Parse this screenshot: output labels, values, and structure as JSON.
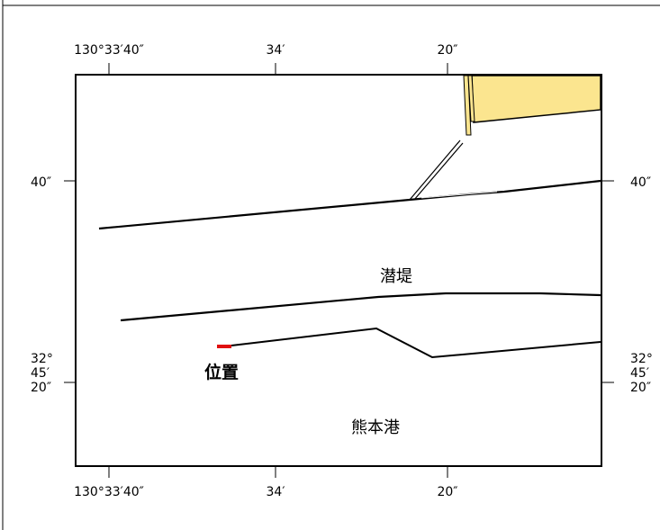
{
  "map": {
    "top_ticks": [
      "130°33′40″",
      "34′",
      "20″"
    ],
    "bottom_ticks": [
      "130°33′40″",
      "34′",
      "20″"
    ],
    "left_ticks": {
      "upper": "40″",
      "lower": [
        "32°",
        "45′",
        "20″"
      ]
    },
    "right_ticks": {
      "upper": "40″",
      "lower": [
        "32°",
        "45′",
        "20″"
      ]
    },
    "labels": {
      "breakwater": "潜堤",
      "position": "位置",
      "port": "熊本港"
    },
    "colors": {
      "land_fill": "#fbe58f",
      "marker": "#e01010",
      "line": "#000000"
    }
  }
}
